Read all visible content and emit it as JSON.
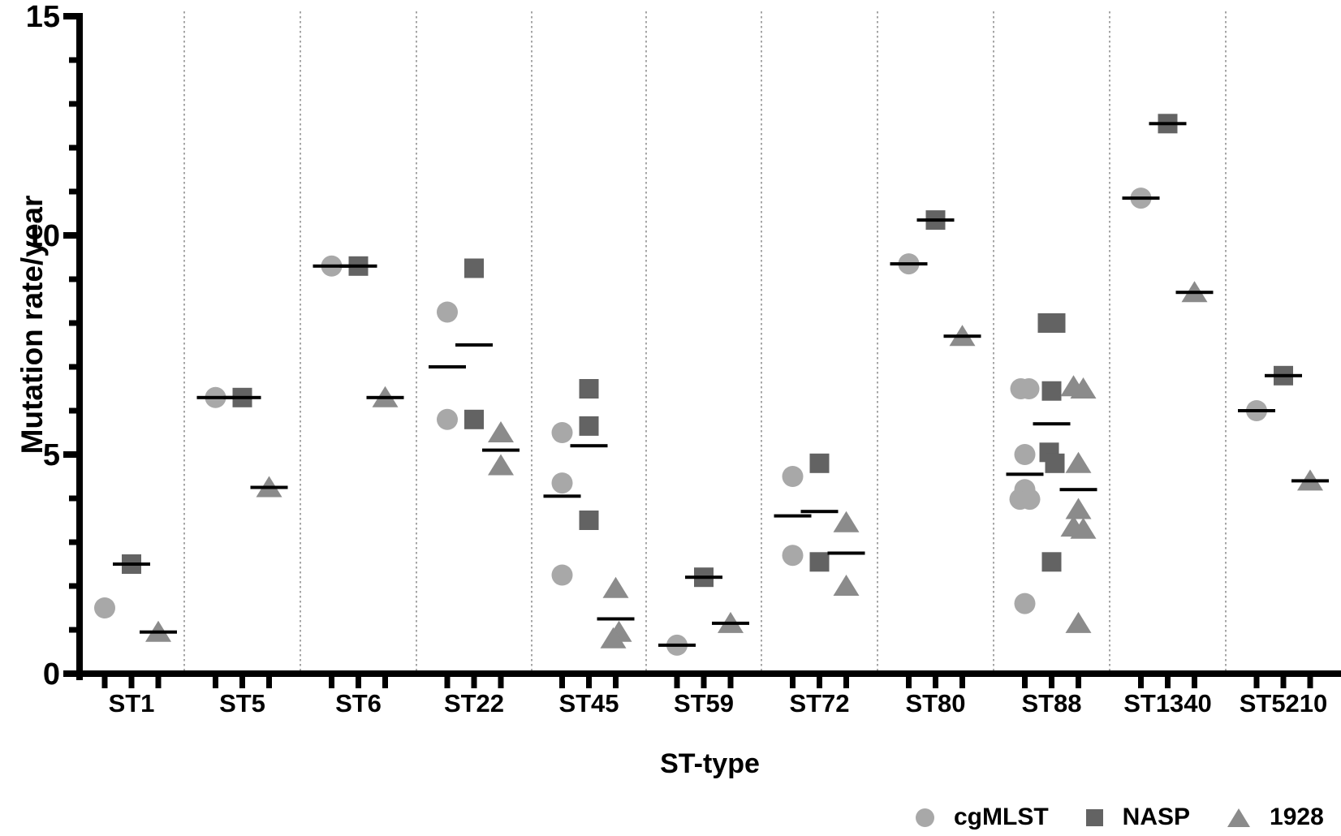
{
  "chart_data": {
    "type": "scatter",
    "title": "",
    "xlabel": "ST-type",
    "ylabel": "Mutation rate/year",
    "ylim": [
      0,
      15
    ],
    "y_major_ticks": [
      0,
      5,
      10,
      15
    ],
    "y_minor_tick_step": 1,
    "grid": "dotted vertical separators between category panels",
    "legend_position": "bottom-right",
    "categories": [
      "ST1",
      "ST5",
      "ST6",
      "ST22",
      "ST45",
      "ST59",
      "ST72",
      "ST80",
      "ST88",
      "ST1340",
      "ST5210"
    ],
    "mean_line_note": "short black horizontal line = group mean",
    "series": [
      {
        "name": "cgMLST",
        "marker": "circle",
        "color": "#a8a8a8",
        "data": [
          {
            "category": "ST1",
            "values": [
              1.5
            ],
            "mean": null
          },
          {
            "category": "ST5",
            "values": [
              6.3
            ],
            "mean": 6.3
          },
          {
            "category": "ST6",
            "values": [
              9.3
            ],
            "mean": 9.3
          },
          {
            "category": "ST22",
            "values": [
              8.25,
              5.8
            ],
            "mean": 7.0
          },
          {
            "category": "ST45",
            "values": [
              5.5,
              4.35,
              2.25
            ],
            "mean": 4.05
          },
          {
            "category": "ST59",
            "values": [
              0.65
            ],
            "mean": 0.65
          },
          {
            "category": "ST72",
            "values": [
              4.5,
              2.7
            ],
            "mean": 3.6
          },
          {
            "category": "ST80",
            "values": [
              9.35
            ],
            "mean": 9.35
          },
          {
            "category": "ST88",
            "values": [
              {
                "v": 6.5,
                "dx": -5
              },
              {
                "v": 6.5,
                "dx": 5
              },
              5.0,
              4.2,
              {
                "v": 3.98,
                "dx": -6
              },
              {
                "v": 3.98,
                "dx": 6
              },
              1.6
            ],
            "mean": 4.55
          },
          {
            "category": "ST1340",
            "values": [
              10.85
            ],
            "mean": 10.85
          },
          {
            "category": "ST5210",
            "values": [
              6.0
            ],
            "mean": 6.0
          }
        ]
      },
      {
        "name": "NASP",
        "marker": "square",
        "color": "#636363",
        "data": [
          {
            "category": "ST1",
            "values": [
              2.5
            ],
            "mean": 2.5
          },
          {
            "category": "ST5",
            "values": [
              6.3
            ],
            "mean": 6.3
          },
          {
            "category": "ST6",
            "values": [
              9.3
            ],
            "mean": 9.3
          },
          {
            "category": "ST22",
            "values": [
              9.25,
              5.8
            ],
            "mean": 7.5
          },
          {
            "category": "ST45",
            "values": [
              6.5,
              5.65,
              3.5
            ],
            "mean": 5.2
          },
          {
            "category": "ST59",
            "values": [
              2.2
            ],
            "mean": 2.2
          },
          {
            "category": "ST72",
            "values": [
              4.8,
              2.55
            ],
            "mean": 3.7
          },
          {
            "category": "ST80",
            "values": [
              10.35
            ],
            "mean": 10.35
          },
          {
            "category": "ST88",
            "values": [
              {
                "v": 8.0,
                "dx": -5
              },
              {
                "v": 8.0,
                "dx": 5
              },
              6.45,
              {
                "v": 5.05,
                "dx": -3
              },
              {
                "v": 4.8,
                "dx": 4
              },
              2.55
            ],
            "mean": 5.7
          },
          {
            "category": "ST1340",
            "values": [
              12.55
            ],
            "mean": 12.55
          },
          {
            "category": "ST5210",
            "values": [
              6.8
            ],
            "mean": 6.8
          }
        ]
      },
      {
        "name": "1928",
        "marker": "triangle",
        "color": "#8b8b8b",
        "data": [
          {
            "category": "ST1",
            "values": [
              0.95
            ],
            "mean": 0.95
          },
          {
            "category": "ST5",
            "values": [
              4.25
            ],
            "mean": 4.25
          },
          {
            "category": "ST6",
            "values": [
              6.3
            ],
            "mean": 6.3
          },
          {
            "category": "ST22",
            "values": [
              5.5,
              4.75
            ],
            "mean": 5.1
          },
          {
            "category": "ST45",
            "values": [
              1.95,
              {
                "v": 0.95,
                "dx": 4
              },
              {
                "v": 0.8,
                "dx": -3
              }
            ],
            "mean": 1.25
          },
          {
            "category": "ST59",
            "values": [
              1.15
            ],
            "mean": 1.15
          },
          {
            "category": "ST72",
            "values": [
              3.45,
              2.0
            ],
            "mean": 2.75
          },
          {
            "category": "ST80",
            "values": [
              7.7
            ],
            "mean": 7.7
          },
          {
            "category": "ST88",
            "values": [
              {
                "v": 6.55,
                "dx": -6
              },
              {
                "v": 6.5,
                "dx": 6
              },
              4.8,
              3.75,
              {
                "v": 3.35,
                "dx": -6
              },
              {
                "v": 3.3,
                "dx": 6
              },
              1.15
            ],
            "mean": 4.2
          },
          {
            "category": "ST1340",
            "values": [
              8.7
            ],
            "mean": 8.7
          },
          {
            "category": "ST5210",
            "values": [
              4.4
            ],
            "mean": 4.4
          }
        ]
      }
    ]
  },
  "axis": {
    "y_title": "Mutation rate/year",
    "x_title": "ST-type",
    "y_tick_labels": [
      "0",
      "5",
      "10",
      "15"
    ]
  },
  "legend": {
    "items": [
      {
        "label": "cgMLST",
        "marker": "circle"
      },
      {
        "label": "NASP",
        "marker": "square"
      },
      {
        "label": "1928",
        "marker": "triangle"
      }
    ]
  }
}
